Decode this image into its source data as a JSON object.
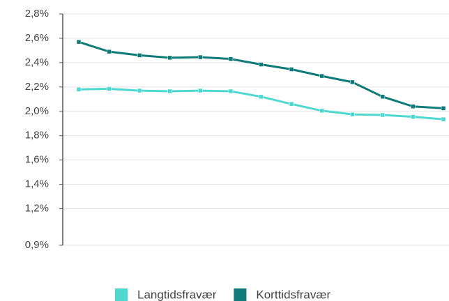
{
  "chart_data": {
    "type": "line",
    "categories": [
      null,
      null,
      null,
      null,
      null,
      null,
      null,
      null,
      null,
      null,
      null,
      null,
      null
    ],
    "series": [
      {
        "name": "Langtidsfravær",
        "color": "#4fd8d0",
        "values": [
          2.18,
          2.185,
          2.17,
          2.165,
          2.17,
          2.165,
          2.12,
          2.06,
          2.005,
          1.975,
          1.97,
          1.955,
          1.935
        ]
      },
      {
        "name": "Korttidsfravær",
        "color": "#0f7a78",
        "values": [
          2.57,
          2.49,
          2.46,
          2.44,
          2.445,
          2.43,
          2.385,
          2.345,
          2.29,
          2.24,
          2.12,
          2.04,
          2.025
        ]
      }
    ],
    "ylim": [
      0.9,
      2.8
    ],
    "yticks": [
      {
        "value": 0.9,
        "label": "0,9%"
      },
      {
        "value": 1.2,
        "label": "1,2%"
      },
      {
        "value": 1.4,
        "label": "1,4%"
      },
      {
        "value": 1.6,
        "label": "1,6%"
      },
      {
        "value": 1.8,
        "label": "1,8%"
      },
      {
        "value": 2.0,
        "label": "2,0%"
      },
      {
        "value": 2.2,
        "label": "2,2%"
      },
      {
        "value": 2.4,
        "label": "2,4%"
      },
      {
        "value": 2.6,
        "label": "2,6%"
      },
      {
        "value": 2.8,
        "label": "2,8%"
      }
    ],
    "grid": true,
    "legend": "bottom"
  }
}
